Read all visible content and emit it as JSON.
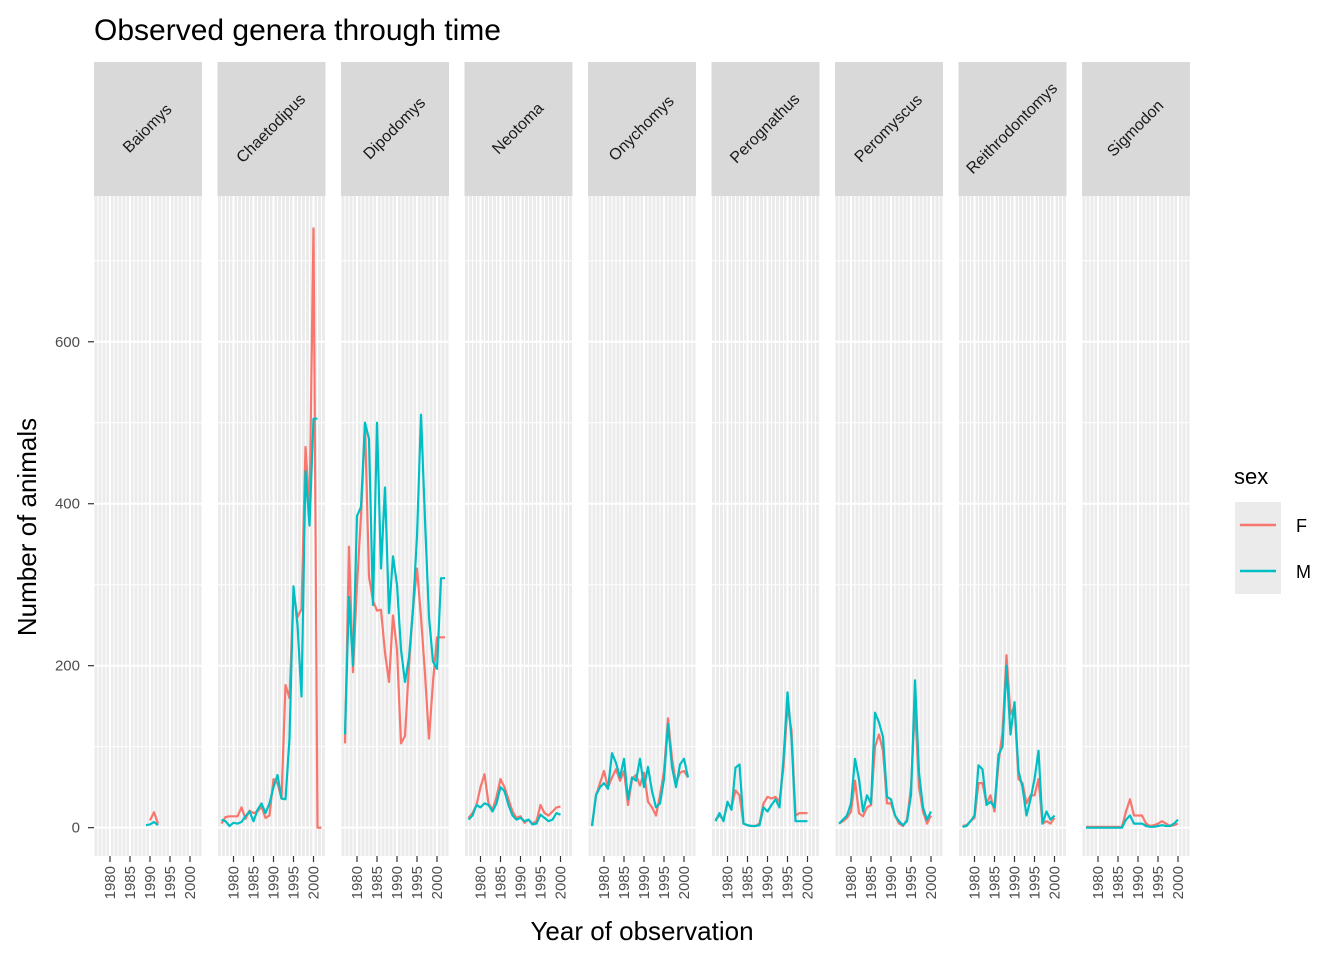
{
  "chart_data": {
    "type": "line",
    "title": "Observed genera through time",
    "xlabel": "Year of observation",
    "ylabel": "Number of animals",
    "xlim": [
      1976,
      2003
    ],
    "ylim": [
      -35,
      780
    ],
    "x_ticks": [
      1980,
      1985,
      1990,
      1995,
      2000
    ],
    "y_ticks": [
      0,
      200,
      400,
      600
    ],
    "grid": true,
    "legend": {
      "title": "sex",
      "placement": "right",
      "entries": [
        {
          "name": "F",
          "color": "#F8766D"
        },
        {
          "name": "M",
          "color": "#00BFC4"
        }
      ]
    },
    "facets": [
      {
        "label": "Baiomys",
        "series": [
          {
            "name": "F",
            "x": [
              1990,
              1991,
              1992
            ],
            "values": [
              9,
              19,
              5
            ]
          },
          {
            "name": "M",
            "x": [
              1989,
              1990,
              1991,
              1992
            ],
            "values": [
              3,
              4,
              7,
              3
            ]
          }
        ]
      },
      {
        "label": "Chaetodipus",
        "series": [
          {
            "name": "F",
            "x": [
              1977,
              1978,
              1979,
              1980,
              1981,
              1982,
              1983,
              1984,
              1985,
              1986,
              1987,
              1988,
              1989,
              1990,
              1991,
              1992,
              1993,
              1994,
              1995,
              1996,
              1997,
              1998,
              1999,
              2000,
              2001,
              2002
            ],
            "values": [
              5,
              13,
              14,
              14,
              14,
              25,
              11,
              21,
              18,
              20,
              26,
              12,
              15,
              60,
              55,
              36,
              176,
              160,
              290,
              260,
              270,
              470,
              390,
              740,
              0,
              0
            ]
          },
          {
            "name": "M",
            "x": [
              1977,
              1978,
              1979,
              1980,
              1981,
              1982,
              1983,
              1984,
              1985,
              1986,
              1987,
              1988,
              1989,
              1990,
              1991,
              1992,
              1993,
              1994,
              1995,
              1996,
              1997,
              1998,
              1999,
              2000,
              2001
            ],
            "values": [
              10,
              8,
              2,
              6,
              5,
              7,
              14,
              20,
              8,
              22,
              30,
              18,
              30,
              50,
              65,
              36,
              35,
              110,
              298,
              250,
              162,
              440,
              373,
              505,
              505
            ]
          }
        ]
      },
      {
        "label": "Dipodomys",
        "series": [
          {
            "name": "F",
            "x": [
              1977,
              1978,
              1979,
              1980,
              1981,
              1982,
              1983,
              1984,
              1985,
              1986,
              1987,
              1988,
              1989,
              1990,
              1991,
              1992,
              1993,
              1994,
              1995,
              1996,
              1997,
              1998,
              1999,
              2000,
              2001,
              2002
            ],
            "values": [
              104,
              347,
              192,
              300,
              385,
              500,
              310,
              280,
              268,
              269,
              216,
              180,
              262,
              220,
              104,
              113,
              200,
              270,
              320,
              260,
              190,
              110,
              180,
              235,
              235,
              235
            ]
          },
          {
            "name": "M",
            "x": [
              1977,
              1978,
              1979,
              1980,
              1981,
              1982,
              1983,
              1984,
              1985,
              1986,
              1987,
              1988,
              1989,
              1990,
              1991,
              1992,
              1993,
              1994,
              1995,
              1996,
              1997,
              1998,
              1999,
              2000,
              2001,
              2002
            ],
            "values": [
              115,
              285,
              200,
              385,
              396,
              500,
              480,
              275,
              500,
              320,
              420,
              265,
              335,
              300,
              220,
              180,
              210,
              270,
              360,
              510,
              380,
              260,
              205,
              196,
              308,
              308
            ]
          }
        ]
      },
      {
        "label": "Neotoma",
        "series": [
          {
            "name": "F",
            "x": [
              1977,
              1978,
              1979,
              1980,
              1981,
              1982,
              1983,
              1984,
              1985,
              1986,
              1987,
              1988,
              1989,
              1990,
              1991,
              1992,
              1993,
              1994,
              1995,
              1996,
              1997,
              1998,
              1999,
              2000
            ],
            "values": [
              12,
              18,
              28,
              50,
              66,
              30,
              22,
              38,
              60,
              50,
              35,
              20,
              12,
              14,
              6,
              10,
              5,
              8,
              28,
              18,
              15,
              20,
              25,
              26
            ]
          },
          {
            "name": "M",
            "x": [
              1977,
              1978,
              1979,
              1980,
              1981,
              1982,
              1983,
              1984,
              1985,
              1986,
              1987,
              1988,
              1989,
              1990,
              1991,
              1992,
              1993,
              1994,
              1995,
              1996,
              1997,
              1998,
              1999,
              2000
            ],
            "values": [
              10,
              15,
              28,
              25,
              30,
              28,
              20,
              30,
              50,
              45,
              28,
              15,
              10,
              12,
              8,
              10,
              4,
              5,
              16,
              12,
              8,
              10,
              18,
              16
            ]
          }
        ]
      },
      {
        "label": "Onychomys",
        "series": [
          {
            "name": "F",
            "x": [
              1977,
              1978,
              1979,
              1980,
              1981,
              1982,
              1983,
              1984,
              1985,
              1986,
              1987,
              1988,
              1989,
              1990,
              1991,
              1992,
              1993,
              1994,
              1995,
              1996,
              1997,
              1998,
              1999,
              2000,
              2001
            ],
            "values": [
              2,
              40,
              55,
              70,
              50,
              62,
              72,
              58,
              70,
              28,
              60,
              65,
              52,
              68,
              32,
              25,
              15,
              40,
              70,
              135,
              85,
              55,
              68,
              70,
              62
            ]
          },
          {
            "name": "M",
            "x": [
              1977,
              1978,
              1979,
              1980,
              1981,
              1982,
              1983,
              1984,
              1985,
              1986,
              1987,
              1988,
              1989,
              1990,
              1991,
              1992,
              1993,
              1994,
              1995,
              1996,
              1997,
              1998,
              1999,
              2000,
              2001
            ],
            "values": [
              2,
              40,
              50,
              55,
              48,
              92,
              80,
              62,
              85,
              35,
              62,
              58,
              85,
              50,
              75,
              45,
              25,
              30,
              60,
              128,
              75,
              50,
              78,
              85,
              62
            ]
          }
        ]
      },
      {
        "label": "Perognathus",
        "series": [
          {
            "name": "F",
            "x": [
              1977,
              1978,
              1979,
              1980,
              1981,
              1982,
              1983,
              1984,
              1985,
              1986,
              1987,
              1988,
              1989,
              1990,
              1991,
              1992,
              1993,
              1994,
              1995,
              1996,
              1997,
              1998,
              1999,
              2000
            ],
            "values": [
              10,
              15,
              10,
              30,
              25,
              46,
              40,
              5,
              3,
              2,
              2,
              5,
              30,
              38,
              36,
              38,
              32,
              75,
              150,
              120,
              15,
              18,
              18,
              18
            ]
          },
          {
            "name": "M",
            "x": [
              1977,
              1978,
              1979,
              1980,
              1981,
              1982,
              1983,
              1984,
              1985,
              1986,
              1987,
              1988,
              1989,
              1990,
              1991,
              1992,
              1993,
              1994,
              1995,
              1996,
              1997,
              1998,
              1999,
              2000
            ],
            "values": [
              8,
              18,
              8,
              32,
              22,
              74,
              78,
              5,
              3,
              2,
              2,
              3,
              25,
              20,
              28,
              35,
              25,
              85,
              167,
              110,
              8,
              8,
              8,
              8
            ]
          }
        ]
      },
      {
        "label": "Peromyscus",
        "series": [
          {
            "name": "F",
            "x": [
              1977,
              1978,
              1979,
              1980,
              1981,
              1982,
              1983,
              1984,
              1985,
              1986,
              1987,
              1988,
              1989,
              1990,
              1991,
              1992,
              1993,
              1994,
              1995,
              1996,
              1997,
              1998,
              1999,
              2000
            ],
            "values": [
              5,
              8,
              12,
              20,
              58,
              18,
              14,
              25,
              28,
              100,
              115,
              95,
              30,
              30,
              15,
              5,
              2,
              10,
              50,
              150,
              50,
              20,
              5,
              15
            ]
          },
          {
            "name": "M",
            "x": [
              1977,
              1978,
              1979,
              1980,
              1981,
              1982,
              1983,
              1984,
              1985,
              1986,
              1987,
              1988,
              1989,
              1990,
              1991,
              1992,
              1993,
              1994,
              1995,
              1996,
              1997,
              1998,
              1999,
              2000
            ],
            "values": [
              5,
              10,
              15,
              30,
              85,
              60,
              20,
              40,
              30,
              142,
              130,
              112,
              38,
              35,
              15,
              8,
              3,
              8,
              40,
              182,
              68,
              25,
              10,
              20
            ]
          }
        ]
      },
      {
        "label": "Reithrodontomys",
        "series": [
          {
            "name": "F",
            "x": [
              1977,
              1978,
              1979,
              1980,
              1981,
              1982,
              1983,
              1984,
              1985,
              1986,
              1987,
              1988,
              1989,
              1990,
              1991,
              1992,
              1993,
              1994,
              1995,
              1996,
              1997,
              1998,
              1999,
              2000
            ],
            "values": [
              2,
              3,
              8,
              12,
              55,
              55,
              30,
              40,
              20,
              80,
              118,
              213,
              140,
              150,
              60,
              55,
              30,
              40,
              40,
              60,
              5,
              8,
              5,
              12
            ]
          },
          {
            "name": "M",
            "x": [
              1977,
              1978,
              1979,
              1980,
              1981,
              1982,
              1983,
              1984,
              1985,
              1986,
              1987,
              1988,
              1989,
              1990,
              1991,
              1992,
              1993,
              1994,
              1995,
              1996,
              1997,
              1998,
              1999,
              2000
            ],
            "values": [
              1,
              2,
              8,
              15,
              77,
              72,
              28,
              32,
              25,
              90,
              100,
              200,
              115,
              155,
              70,
              50,
              15,
              35,
              60,
              95,
              5,
              20,
              10,
              15
            ]
          }
        ]
      },
      {
        "label": "Sigmodon",
        "series": [
          {
            "name": "F",
            "x": [
              1977,
              1978,
              1979,
              1980,
              1981,
              1982,
              1983,
              1984,
              1985,
              1986,
              1987,
              1988,
              1989,
              1990,
              1991,
              1992,
              1993,
              1994,
              1995,
              1996,
              1997,
              1998,
              1999,
              2000
            ],
            "values": [
              1,
              1,
              1,
              1,
              1,
              1,
              1,
              1,
              1,
              1,
              20,
              35,
              15,
              15,
              15,
              5,
              2,
              3,
              5,
              8,
              5,
              2,
              3,
              5
            ]
          },
          {
            "name": "M",
            "x": [
              1977,
              1978,
              1979,
              1980,
              1981,
              1982,
              1983,
              1984,
              1985,
              1986,
              1987,
              1988,
              1989,
              1990,
              1991,
              1992,
              1993,
              1994,
              1995,
              1996,
              1997,
              1998,
              1999,
              2000
            ],
            "values": [
              0,
              0,
              0,
              0,
              0,
              0,
              0,
              0,
              0,
              0,
              10,
              15,
              5,
              5,
              5,
              2,
              1,
              1,
              2,
              3,
              2,
              2,
              5,
              10
            ]
          }
        ]
      }
    ]
  }
}
